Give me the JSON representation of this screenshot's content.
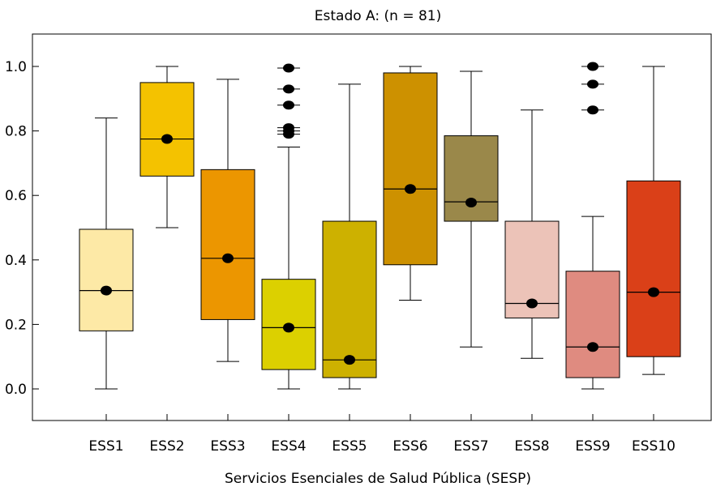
{
  "chart_data": {
    "type": "box",
    "title": "Estado A: (n = 81)",
    "xlabel": "Servicios Esenciales de Salud Pública (SESP)",
    "ylabel": "",
    "ylim": [
      -0.1,
      1.1
    ],
    "yticks": [
      "0.0",
      "0.2",
      "0.4",
      "0.6",
      "0.8",
      "1.0"
    ],
    "grid": false,
    "categories": [
      "ESS1",
      "ESS2",
      "ESS3",
      "ESS4",
      "ESS5",
      "ESS6",
      "ESS7",
      "ESS8",
      "ESS9",
      "ESS10"
    ],
    "boxes": [
      {
        "name": "ESS1",
        "whisker_low": 0.0,
        "q1": 0.18,
        "median": 0.305,
        "q3": 0.495,
        "whisker_high": 0.84,
        "mean": 0.305,
        "outliers": [],
        "color": "#fde9a6"
      },
      {
        "name": "ESS2",
        "whisker_low": 0.5,
        "q1": 0.66,
        "median": 0.775,
        "q3": 0.95,
        "whisker_high": 1.0,
        "mean": 0.775,
        "outliers": [],
        "color": "#f4c200"
      },
      {
        "name": "ESS3",
        "whisker_low": 0.085,
        "q1": 0.215,
        "median": 0.405,
        "q3": 0.68,
        "whisker_high": 0.96,
        "mean": 0.405,
        "outliers": [],
        "color": "#ec9600"
      },
      {
        "name": "ESS4",
        "whisker_low": 0.0,
        "q1": 0.06,
        "median": 0.19,
        "q3": 0.34,
        "whisker_high": 0.75,
        "mean": 0.19,
        "outliers": [
          0.79,
          0.8,
          0.81,
          0.88,
          0.93,
          0.995
        ],
        "color": "#dcd000"
      },
      {
        "name": "ESS5",
        "whisker_low": 0.0,
        "q1": 0.035,
        "median": 0.09,
        "q3": 0.52,
        "whisker_high": 0.945,
        "mean": 0.09,
        "outliers": [],
        "color": "#cdb100"
      },
      {
        "name": "ESS6",
        "whisker_low": 0.275,
        "q1": 0.385,
        "median": 0.62,
        "q3": 0.98,
        "whisker_high": 1.0,
        "mean": 0.62,
        "outliers": [],
        "color": "#cd9100"
      },
      {
        "name": "ESS7",
        "whisker_low": 0.13,
        "q1": 0.52,
        "median": 0.58,
        "q3": 0.785,
        "whisker_high": 0.985,
        "mean": 0.578,
        "outliers": [],
        "color": "#9a884a"
      },
      {
        "name": "ESS8",
        "whisker_low": 0.095,
        "q1": 0.22,
        "median": 0.265,
        "q3": 0.52,
        "whisker_high": 0.865,
        "mean": 0.265,
        "outliers": [],
        "color": "#ecc3b8"
      },
      {
        "name": "ESS9",
        "whisker_low": 0.0,
        "q1": 0.035,
        "median": 0.13,
        "q3": 0.365,
        "whisker_high": 0.535,
        "mean": 0.13,
        "outliers": [
          0.865,
          0.945,
          1.0
        ],
        "color": "#df8b80"
      },
      {
        "name": "ESS10",
        "whisker_low": 0.045,
        "q1": 0.1,
        "median": 0.3,
        "q3": 0.645,
        "whisker_high": 1.0,
        "mean": 0.3,
        "outliers": [],
        "color": "#da4018"
      }
    ]
  }
}
